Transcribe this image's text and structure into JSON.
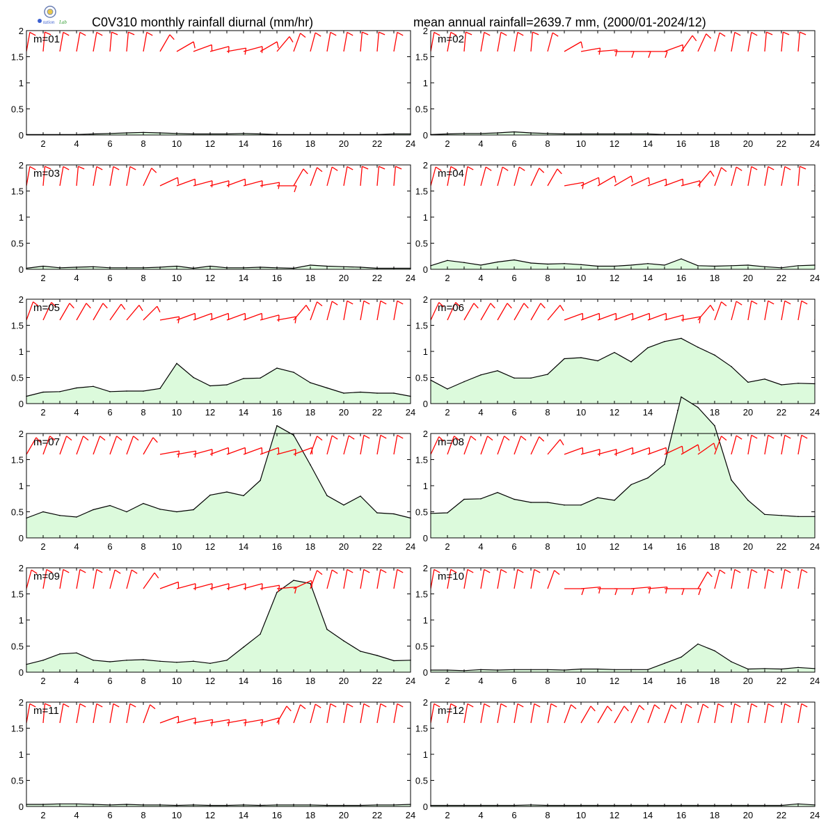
{
  "title_left": "C0V310 monthly rainfall diurnal (mm/hr)",
  "title_right": "mean annual rainfall=2639.7 mm, (2000/01-2024/12)",
  "logo": {
    "name": "station-lab-logo",
    "text": "Station Lab"
  },
  "colors": {
    "fill": "#dcfadc",
    "line": "#000000",
    "wind": "#ff0000"
  },
  "chart_data": {
    "type": "area",
    "x": [
      1,
      2,
      3,
      4,
      5,
      6,
      7,
      8,
      9,
      10,
      11,
      12,
      13,
      14,
      15,
      16,
      17,
      18,
      19,
      20,
      21,
      22,
      23,
      24
    ],
    "x_ticks": [
      2,
      4,
      6,
      8,
      10,
      12,
      14,
      16,
      18,
      20,
      22,
      24
    ],
    "y_ticks": [
      "0",
      "0.5",
      "1",
      "1.5",
      "2"
    ],
    "xlim": [
      1,
      24
    ],
    "ylim": [
      0,
      2
    ],
    "grid": false,
    "panels": [
      {
        "label": "m=01",
        "values": [
          0.01,
          0.01,
          0.01,
          0.01,
          0.02,
          0.03,
          0.04,
          0.05,
          0.04,
          0.03,
          0.02,
          0.02,
          0.02,
          0.03,
          0.02,
          0.01,
          0.01,
          0.01,
          0.01,
          0.01,
          0.01,
          0.01,
          0.02,
          0.02
        ]
      },
      {
        "label": "m=02",
        "values": [
          0.01,
          0.02,
          0.03,
          0.03,
          0.04,
          0.06,
          0.04,
          0.03,
          0.02,
          0.02,
          0.02,
          0.02,
          0.02,
          0.02,
          0.01,
          0.01,
          0.01,
          0.01,
          0.01,
          0.01,
          0.01,
          0.01,
          0.01,
          0.01
        ]
      },
      {
        "label": "m=03",
        "values": [
          0.02,
          0.06,
          0.03,
          0.04,
          0.05,
          0.03,
          0.03,
          0.03,
          0.04,
          0.06,
          0.02,
          0.06,
          0.03,
          0.03,
          0.04,
          0.03,
          0.02,
          0.08,
          0.06,
          0.05,
          0.04,
          0.02,
          0.02,
          0.02
        ]
      },
      {
        "label": "m=04",
        "values": [
          0.07,
          0.17,
          0.13,
          0.08,
          0.14,
          0.18,
          0.12,
          0.1,
          0.11,
          0.09,
          0.06,
          0.06,
          0.08,
          0.11,
          0.08,
          0.2,
          0.07,
          0.06,
          0.07,
          0.08,
          0.05,
          0.03,
          0.07,
          0.08
        ]
      },
      {
        "label": "m=05",
        "values": [
          0.14,
          0.22,
          0.23,
          0.3,
          0.33,
          0.23,
          0.24,
          0.24,
          0.29,
          0.77,
          0.5,
          0.34,
          0.36,
          0.48,
          0.49,
          0.68,
          0.6,
          0.4,
          0.3,
          0.2,
          0.22,
          0.2,
          0.2,
          0.14
        ]
      },
      {
        "label": "m=06",
        "values": [
          0.45,
          0.28,
          0.42,
          0.55,
          0.63,
          0.49,
          0.49,
          0.56,
          0.86,
          0.88,
          0.82,
          0.98,
          0.8,
          1.07,
          1.19,
          1.25,
          1.08,
          0.93,
          0.71,
          0.41,
          0.47,
          0.36,
          0.39,
          0.38
        ]
      },
      {
        "label": "m=07",
        "values": [
          0.38,
          0.5,
          0.43,
          0.4,
          0.54,
          0.62,
          0.5,
          0.66,
          0.55,
          0.5,
          0.54,
          0.82,
          0.88,
          0.81,
          1.1,
          2.15,
          1.97,
          1.4,
          0.81,
          0.63,
          0.8,
          0.48,
          0.46,
          0.38
        ]
      },
      {
        "label": "m=08",
        "values": [
          0.47,
          0.48,
          0.74,
          0.75,
          0.87,
          0.74,
          0.68,
          0.68,
          0.63,
          0.63,
          0.77,
          0.72,
          1.02,
          1.15,
          1.41,
          2.7,
          2.5,
          2.15,
          1.11,
          0.72,
          0.45,
          0.43,
          0.41,
          0.41
        ]
      },
      {
        "label": "m=09",
        "values": [
          0.15,
          0.23,
          0.35,
          0.37,
          0.23,
          0.2,
          0.23,
          0.24,
          0.21,
          0.19,
          0.21,
          0.17,
          0.23,
          0.48,
          0.73,
          1.53,
          1.76,
          1.7,
          0.82,
          0.6,
          0.4,
          0.32,
          0.22,
          0.23
        ]
      },
      {
        "label": "m=10",
        "values": [
          0.04,
          0.04,
          0.03,
          0.05,
          0.04,
          0.05,
          0.05,
          0.05,
          0.04,
          0.06,
          0.06,
          0.05,
          0.05,
          0.05,
          0.17,
          0.29,
          0.54,
          0.41,
          0.2,
          0.06,
          0.07,
          0.06,
          0.09,
          0.07
        ]
      },
      {
        "label": "m=11",
        "values": [
          0.04,
          0.04,
          0.05,
          0.05,
          0.04,
          0.03,
          0.04,
          0.03,
          0.03,
          0.02,
          0.03,
          0.02,
          0.02,
          0.03,
          0.02,
          0.03,
          0.03,
          0.03,
          0.02,
          0.02,
          0.02,
          0.03,
          0.03,
          0.04
        ]
      },
      {
        "label": "m=12",
        "values": [
          0.02,
          0.02,
          0.02,
          0.02,
          0.02,
          0.02,
          0.03,
          0.02,
          0.02,
          0.02,
          0.02,
          0.02,
          0.02,
          0.02,
          0.02,
          0.02,
          0.02,
          0.02,
          0.02,
          0.02,
          0.02,
          0.02,
          0.05,
          0.03
        ]
      }
    ],
    "wind_barbs": {
      "color": "#ff0000",
      "note_directions": "direction in degrees (meteorological, wind from) per hour 1-24, one row per panel",
      "directions": [
        [
          10,
          5,
          10,
          10,
          10,
          5,
          5,
          10,
          30,
          60,
          70,
          75,
          80,
          75,
          60,
          40,
          20,
          15,
          10,
          10,
          5,
          5,
          10,
          10
        ],
        [
          10,
          10,
          5,
          10,
          10,
          10,
          5,
          15,
          60,
          80,
          85,
          90,
          90,
          90,
          70,
          35,
          25,
          15,
          10,
          10,
          5,
          5,
          5,
          5
        ],
        [
          10,
          5,
          10,
          5,
          10,
          10,
          10,
          25,
          65,
          70,
          75,
          75,
          70,
          75,
          80,
          90,
          30,
          20,
          15,
          10,
          5,
          5,
          5,
          5
        ],
        [
          15,
          10,
          10,
          15,
          15,
          15,
          25,
          30,
          80,
          65,
          60,
          60,
          65,
          70,
          70,
          75,
          40,
          20,
          15,
          10,
          10,
          10,
          5,
          5
        ],
        [
          20,
          25,
          30,
          30,
          30,
          35,
          40,
          45,
          80,
          70,
          70,
          70,
          70,
          70,
          75,
          80,
          40,
          20,
          15,
          10,
          10,
          10,
          10,
          5
        ],
        [
          25,
          25,
          30,
          30,
          30,
          30,
          30,
          40,
          70,
          70,
          70,
          70,
          70,
          70,
          75,
          80,
          40,
          20,
          15,
          10,
          10,
          10,
          10,
          5
        ],
        [
          30,
          20,
          20,
          20,
          20,
          20,
          20,
          30,
          80,
          80,
          75,
          70,
          70,
          70,
          70,
          75,
          70,
          20,
          15,
          15,
          10,
          10,
          10,
          10
        ],
        [
          25,
          20,
          20,
          20,
          20,
          20,
          25,
          40,
          70,
          75,
          75,
          70,
          70,
          70,
          65,
          60,
          55,
          20,
          15,
          10,
          10,
          10,
          10,
          10
        ],
        [
          15,
          10,
          10,
          10,
          10,
          15,
          15,
          35,
          70,
          75,
          75,
          75,
          75,
          75,
          80,
          85,
          65,
          20,
          15,
          10,
          10,
          10,
          10,
          10
        ],
        [
          10,
          10,
          10,
          10,
          10,
          10,
          10,
          20,
          90,
          85,
          90,
          90,
          85,
          85,
          90,
          90,
          30,
          15,
          10,
          10,
          10,
          10,
          10,
          10
        ],
        [
          10,
          5,
          10,
          10,
          10,
          10,
          10,
          20,
          70,
          75,
          80,
          80,
          80,
          80,
          75,
          30,
          20,
          15,
          10,
          10,
          10,
          10,
          10,
          10
        ],
        [
          10,
          10,
          10,
          10,
          10,
          10,
          10,
          10,
          20,
          30,
          30,
          30,
          25,
          20,
          20,
          15,
          15,
          10,
          10,
          10,
          10,
          10,
          10,
          10
        ]
      ]
    }
  }
}
